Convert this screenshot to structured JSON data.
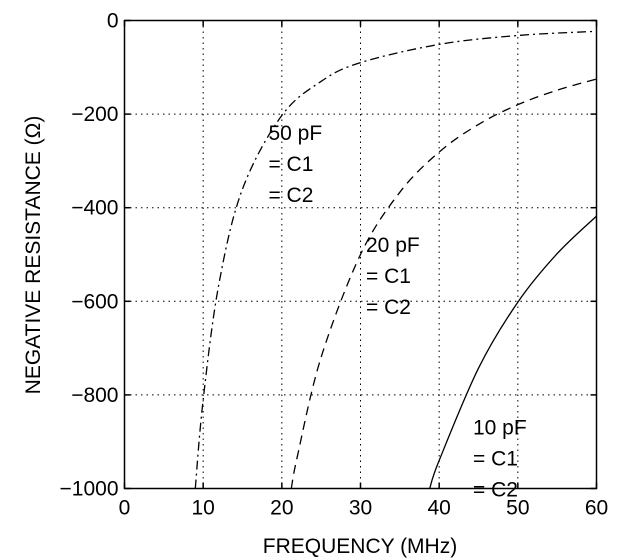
{
  "chart_data": {
    "type": "line",
    "title": "",
    "xlabel": "FREQUENCY (MHz)",
    "ylabel": "NEGATIVE RESISTANCE (Ω)",
    "xlim": [
      0,
      60
    ],
    "ylim": [
      -1000,
      0
    ],
    "xticks": [
      0,
      10,
      20,
      30,
      40,
      50,
      60
    ],
    "yticks": [
      0,
      -200,
      -400,
      -600,
      -800,
      -1000
    ],
    "xtick_labels": [
      "0",
      "10",
      "20",
      "30",
      "40",
      "50",
      "60"
    ],
    "ytick_labels": [
      "0",
      "−200",
      "−400",
      "−600",
      "−800",
      "−1000"
    ],
    "grid": true,
    "legend": "none (curves labelled by in-plot annotations)",
    "series": [
      {
        "style": "dash-dot",
        "color": "#000000",
        "x": [
          9.0,
          10,
          12,
          15,
          20,
          25,
          30,
          40,
          50,
          60
        ],
        "y": [
          -1000,
          -810,
          -563,
          -360,
          -203,
          -130,
          -90,
          -51,
          -32,
          -23
        ]
      },
      {
        "style": "dashed",
        "color": "#000000",
        "x": [
          21.2,
          22,
          25,
          30,
          35,
          40,
          45,
          50,
          55,
          60
        ],
        "y": [
          -1000,
          -929,
          -719,
          -500,
          -367,
          -281,
          -222,
          -180,
          -149,
          -125
        ]
      },
      {
        "style": "solid",
        "color": "#000000",
        "x": [
          38.8,
          40,
          45,
          50,
          55,
          60
        ],
        "y": [
          -1000,
          -940,
          -743,
          -602,
          -498,
          -418
        ]
      }
    ],
    "annotations": [
      {
        "lines": [
          "50 pF",
          "= C1",
          "= C2"
        ],
        "x": 18.3,
        "y": -255
      },
      {
        "lines": [
          "20 pF",
          "= C1",
          "= C2"
        ],
        "x": 30.7,
        "y": -495
      },
      {
        "lines": [
          "10 pF",
          "= C1",
          "= C2"
        ],
        "x": 44.3,
        "y": -885
      }
    ]
  }
}
